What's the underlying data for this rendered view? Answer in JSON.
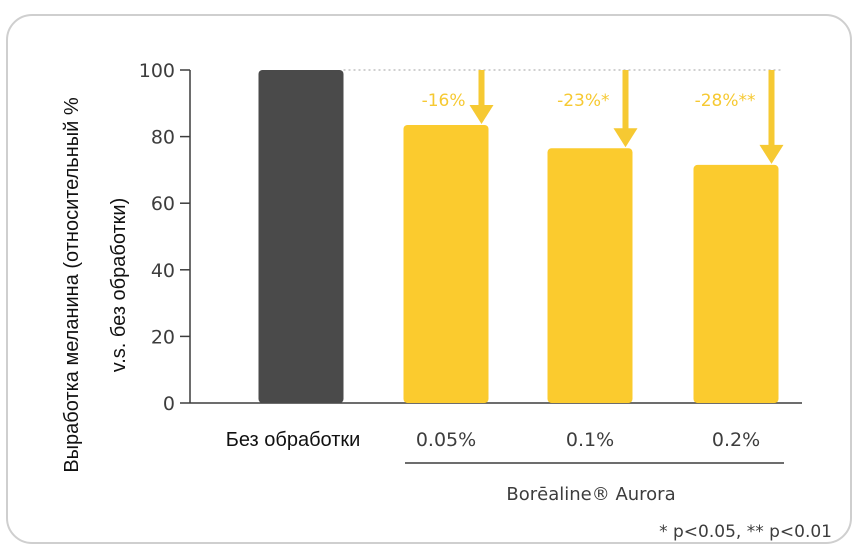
{
  "chart_data": {
    "type": "bar",
    "categories": [
      "Без обработки",
      "0.05%",
      "0.1%",
      "0.2%"
    ],
    "values": [
      100,
      83.5,
      76.5,
      71.5
    ],
    "bar_colors": [
      "#4a4a4a",
      "#fbcb2e",
      "#fbcb2e",
      "#fbcb2e"
    ],
    "arrow_color": "#f6c932",
    "text_color": "#3d3d3d",
    "ylabel_line1": "Выработка меланина  (относительный %",
    "ylabel_line2": "v.s. без обработки)",
    "yticks": [
      0,
      20,
      40,
      60,
      80,
      100
    ],
    "ylim": [
      0,
      100
    ],
    "change_labels": [
      {
        "category": "0.05%",
        "text": "-16%"
      },
      {
        "category": "0.1%",
        "text": "-23%*"
      },
      {
        "category": "0.2%",
        "text": "-28%**"
      }
    ],
    "group_label": "Borēaline® Aurora",
    "footnote": "* p<0.05, ** p<0.01",
    "reference_line": 100,
    "grid": false
  }
}
